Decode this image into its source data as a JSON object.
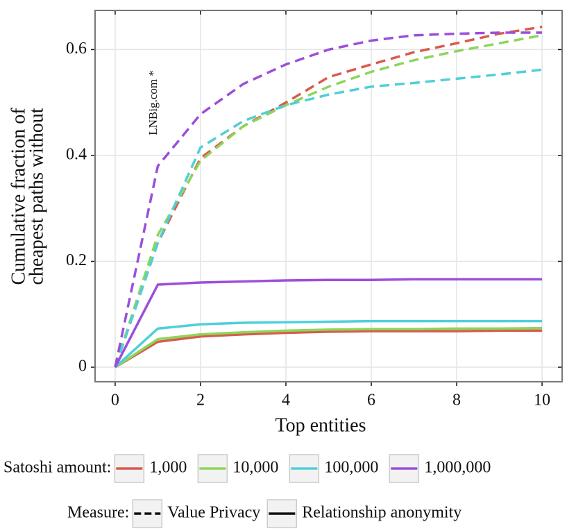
{
  "chart_data": {
    "type": "line",
    "xlabel": "Top entities",
    "ylabel": [
      "Cumulative fraction of",
      "cheapest paths without"
    ],
    "annotation": "LNBig.com *",
    "x": [
      0,
      1,
      2,
      3,
      4,
      5,
      6,
      7,
      8,
      9,
      10
    ],
    "xlim": [
      -0.47,
      10.47
    ],
    "xticks": [
      0,
      2,
      4,
      6,
      8,
      10
    ],
    "ylim": [
      -0.0275,
      0.674
    ],
    "yticks": [
      0,
      0.2,
      0.4,
      0.6
    ],
    "grid": true,
    "series": [
      {
        "color": "#d95a4e",
        "linestyle": "dashed",
        "values": [
          0,
          0.235,
          0.395,
          0.455,
          0.5,
          0.548,
          0.572,
          0.595,
          0.612,
          0.63,
          0.643
        ]
      },
      {
        "color": "#8cd65a",
        "linestyle": "dashed",
        "values": [
          0,
          0.25,
          0.39,
          0.455,
          0.495,
          0.53,
          0.558,
          0.58,
          0.597,
          0.612,
          0.627
        ]
      },
      {
        "color": "#4fcfd9",
        "linestyle": "dashed",
        "values": [
          0,
          0.235,
          0.415,
          0.465,
          0.495,
          0.515,
          0.53,
          0.537,
          0.545,
          0.553,
          0.562
        ]
      },
      {
        "color": "#9b4fd9",
        "linestyle": "dashed",
        "values": [
          0,
          0.38,
          0.478,
          0.535,
          0.572,
          0.6,
          0.617,
          0.627,
          0.63,
          0.632,
          0.632
        ]
      },
      {
        "color": "#d95a4e",
        "linestyle": "solid",
        "values": [
          0,
          0.048,
          0.058,
          0.062,
          0.065,
          0.067,
          0.068,
          0.068,
          0.068,
          0.069,
          0.069
        ]
      },
      {
        "color": "#8cd65a",
        "linestyle": "solid",
        "values": [
          0,
          0.053,
          0.062,
          0.066,
          0.069,
          0.071,
          0.072,
          0.072,
          0.073,
          0.073,
          0.074
        ]
      },
      {
        "color": "#4fcfd9",
        "linestyle": "solid",
        "values": [
          0,
          0.073,
          0.081,
          0.084,
          0.085,
          0.086,
          0.087,
          0.087,
          0.087,
          0.087,
          0.087
        ]
      },
      {
        "color": "#9b4fd9",
        "linestyle": "solid",
        "values": [
          0,
          0.156,
          0.16,
          0.162,
          0.164,
          0.165,
          0.165,
          0.166,
          0.166,
          0.166,
          0.166
        ]
      }
    ],
    "color_legend": {
      "title": "Satoshi amount:",
      "entries": [
        {
          "label": "1,000",
          "color": "#d95a4e"
        },
        {
          "label": "10,000",
          "color": "#8cd65a"
        },
        {
          "label": "100,000",
          "color": "#4fcfd9"
        },
        {
          "label": "1,000,000",
          "color": "#9b4fd9"
        }
      ]
    },
    "linetype_legend": {
      "title": "Measure:",
      "entries": [
        {
          "label": "Value Privacy",
          "linestyle": "dashed"
        },
        {
          "label": "Relationship anonymity",
          "linestyle": "solid"
        }
      ]
    }
  }
}
